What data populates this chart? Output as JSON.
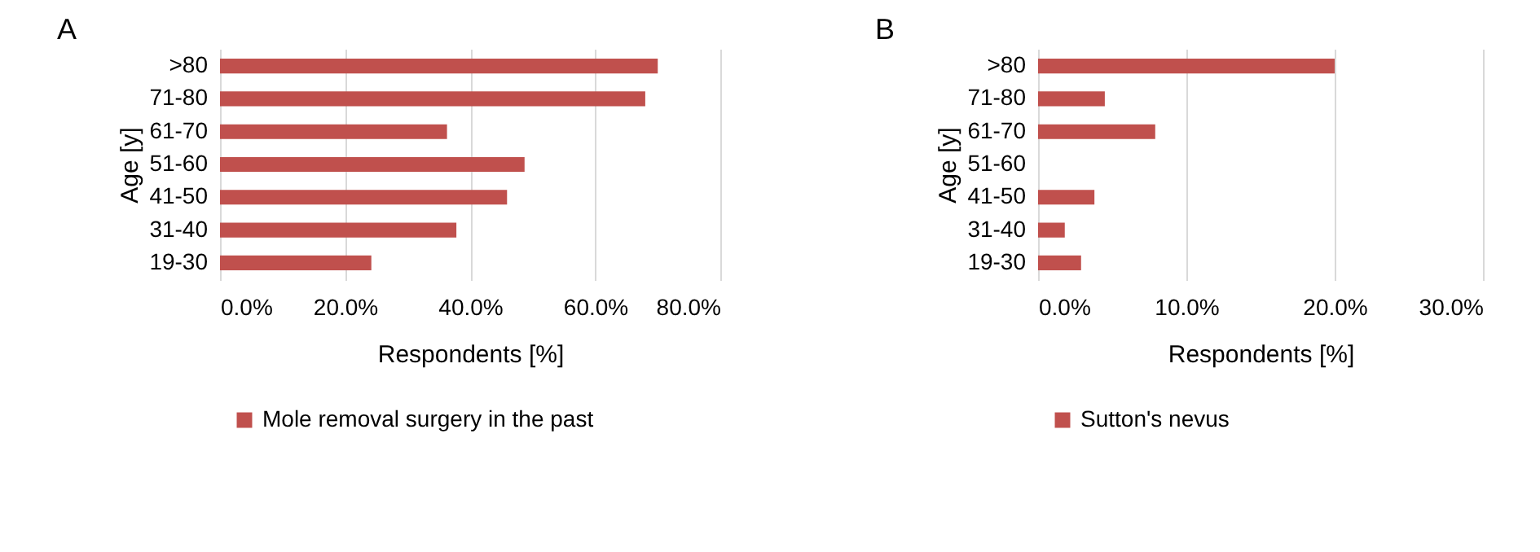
{
  "chart_data": [
    {
      "type": "bar",
      "title": "A",
      "orientation": "horizontal",
      "categories": [
        ">80",
        "71-80",
        "61-70",
        "51-60",
        "41-50",
        "31-40",
        "19-30"
      ],
      "series": [
        {
          "name": "Mole removal surgery in the past",
          "color": "#c0504d",
          "values": [
            70,
            68,
            36.3,
            48.7,
            45.9,
            37.8,
            24.2
          ]
        }
      ],
      "xlabel": "Respondents [%]",
      "ylabel": "Age [y]",
      "xlim": [
        0,
        80
      ],
      "xticks": [
        {
          "value": 0,
          "label": "0.0%"
        },
        {
          "value": 20,
          "label": "20.0%"
        },
        {
          "value": 40,
          "label": "40.0%"
        },
        {
          "value": 60,
          "label": "60.0%"
        },
        {
          "value": 80,
          "label": "80.0%"
        }
      ],
      "grid": "x",
      "legend": "bottom"
    },
    {
      "type": "bar",
      "title": "B",
      "orientation": "horizontal",
      "categories": [
        ">80",
        "71-80",
        "61-70",
        "51-60",
        "41-50",
        "31-40",
        "19-30"
      ],
      "series": [
        {
          "name": "Sutton's nevus",
          "color": "#c0504d",
          "values": [
            20,
            4.5,
            7.9,
            0,
            3.8,
            1.8,
            2.9
          ]
        }
      ],
      "xlabel": "Respondents [%]",
      "ylabel": "Age [y]",
      "xlim": [
        0,
        30
      ],
      "xticks": [
        {
          "value": 0,
          "label": "0.0%"
        },
        {
          "value": 10,
          "label": "10.0%"
        },
        {
          "value": 20,
          "label": "20.0%"
        },
        {
          "value": 30,
          "label": "30.0%"
        }
      ],
      "grid": "x",
      "legend": "bottom"
    }
  ]
}
